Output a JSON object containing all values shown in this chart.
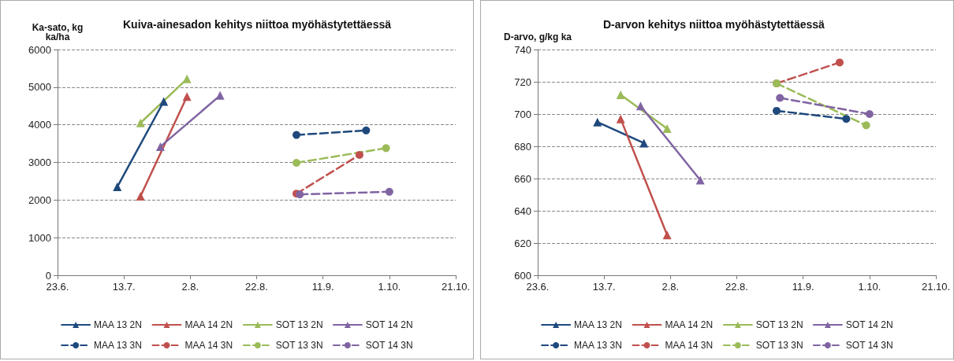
{
  "chart_data": [
    {
      "type": "line",
      "title": "Kuiva-ainesadon kehitys niittoa myöhästytettäessä",
      "ylabel": "Ka-sato, kg\nka/ha",
      "xlim": [
        "--06-23",
        "--10-21"
      ],
      "xticks": [
        {
          "value": "--06-23",
          "label": "23.6."
        },
        {
          "value": "--07-13",
          "label": "13.7."
        },
        {
          "value": "--08-02",
          "label": "2.8."
        },
        {
          "value": "--08-22",
          "label": "22.8."
        },
        {
          "value": "--09-11",
          "label": "11.9."
        },
        {
          "value": "--10-01",
          "label": "1.10."
        },
        {
          "value": "--10-21",
          "label": "21.10."
        }
      ],
      "ylim": [
        0,
        6000
      ],
      "yticks": [
        0,
        1000,
        2000,
        3000,
        4000,
        5000,
        6000
      ],
      "grid": "y",
      "legend": "bottom",
      "series": [
        {
          "name": "MAA 13 2N",
          "color": "#1f497d",
          "marker": "triangle",
          "line_style": "solid",
          "x": [
            "--07-11",
            "--07-25"
          ],
          "values": [
            2350,
            4620
          ]
        },
        {
          "name": "MAA 14 2N",
          "color": "#c0504d",
          "marker": "triangle",
          "line_style": "solid",
          "x": [
            "--07-18",
            "--08-01"
          ],
          "values": [
            2100,
            4750
          ]
        },
        {
          "name": "SOT 13 2N",
          "color": "#9bbb59",
          "marker": "triangle",
          "line_style": "solid",
          "x": [
            "--07-18",
            "--08-01"
          ],
          "values": [
            4050,
            5220
          ]
        },
        {
          "name": "SOT 14 2N",
          "color": "#8064a2",
          "marker": "triangle",
          "line_style": "solid",
          "x": [
            "--07-24",
            "--08-11"
          ],
          "values": [
            3420,
            4780
          ]
        },
        {
          "name": "MAA 13 3N",
          "color": "#1f497d",
          "marker": "circle",
          "line_style": "dashed",
          "x": [
            "--09-03",
            "--09-24"
          ],
          "values": [
            3730,
            3850
          ]
        },
        {
          "name": "MAA 14 3N",
          "color": "#c0504d",
          "marker": "circle",
          "line_style": "dashed",
          "x": [
            "--09-03",
            "--09-22"
          ],
          "values": [
            2170,
            3200
          ]
        },
        {
          "name": "SOT 13 3N",
          "color": "#9bbb59",
          "marker": "circle",
          "line_style": "dashed",
          "x": [
            "--09-03",
            "--09-30"
          ],
          "values": [
            2990,
            3380
          ]
        },
        {
          "name": "SOT 14 3N",
          "color": "#8064a2",
          "marker": "circle",
          "line_style": "dashed",
          "x": [
            "--09-04",
            "--10-01"
          ],
          "values": [
            2150,
            2220
          ]
        }
      ]
    },
    {
      "type": "line",
      "title": "D-arvon kehitys niittoa myöhästytettäessä",
      "ylabel": "D-arvo, g/kg ka",
      "xlim": [
        "--06-23",
        "--10-21"
      ],
      "xticks": [
        {
          "value": "--06-23",
          "label": "23.6."
        },
        {
          "value": "--07-13",
          "label": "13.7."
        },
        {
          "value": "--08-02",
          "label": "2.8."
        },
        {
          "value": "--08-22",
          "label": "22.8."
        },
        {
          "value": "--09-11",
          "label": "11.9."
        },
        {
          "value": "--10-01",
          "label": "1.10."
        },
        {
          "value": "--10-21",
          "label": "21.10."
        }
      ],
      "ylim": [
        600,
        740
      ],
      "yticks": [
        600,
        620,
        640,
        660,
        680,
        700,
        720,
        740
      ],
      "grid": "y",
      "legend": "bottom",
      "series": [
        {
          "name": "MAA 13 2N",
          "color": "#1f497d",
          "marker": "triangle",
          "line_style": "solid",
          "x": [
            "--07-11",
            "--07-25"
          ],
          "values": [
            695,
            682
          ]
        },
        {
          "name": "MAA 14 2N",
          "color": "#c0504d",
          "marker": "triangle",
          "line_style": "solid",
          "x": [
            "--07-18",
            "--08-01"
          ],
          "values": [
            697,
            625
          ]
        },
        {
          "name": "SOT 13 2N",
          "color": "#9bbb59",
          "marker": "triangle",
          "line_style": "solid",
          "x": [
            "--07-18",
            "--08-01"
          ],
          "values": [
            712,
            691
          ]
        },
        {
          "name": "SOT 14 2N",
          "color": "#8064a2",
          "marker": "triangle",
          "line_style": "solid",
          "x": [
            "--07-24",
            "--08-11"
          ],
          "values": [
            705,
            659
          ]
        },
        {
          "name": "MAA 13 3N",
          "color": "#1f497d",
          "marker": "circle",
          "line_style": "dashed",
          "x": [
            "--09-03",
            "--09-24"
          ],
          "values": [
            702,
            697
          ]
        },
        {
          "name": "MAA 14 3N",
          "color": "#c0504d",
          "marker": "circle",
          "line_style": "dashed",
          "x": [
            "--09-03",
            "--09-22"
          ],
          "values": [
            719,
            732
          ]
        },
        {
          "name": "SOT 13 3N",
          "color": "#9bbb59",
          "marker": "circle",
          "line_style": "dashed",
          "x": [
            "--09-03",
            "--09-30"
          ],
          "values": [
            719,
            693
          ]
        },
        {
          "name": "SOT 14 3N",
          "color": "#8064a2",
          "marker": "circle",
          "line_style": "dashed",
          "x": [
            "--09-04",
            "--10-01"
          ],
          "values": [
            710,
            700
          ]
        }
      ]
    }
  ]
}
